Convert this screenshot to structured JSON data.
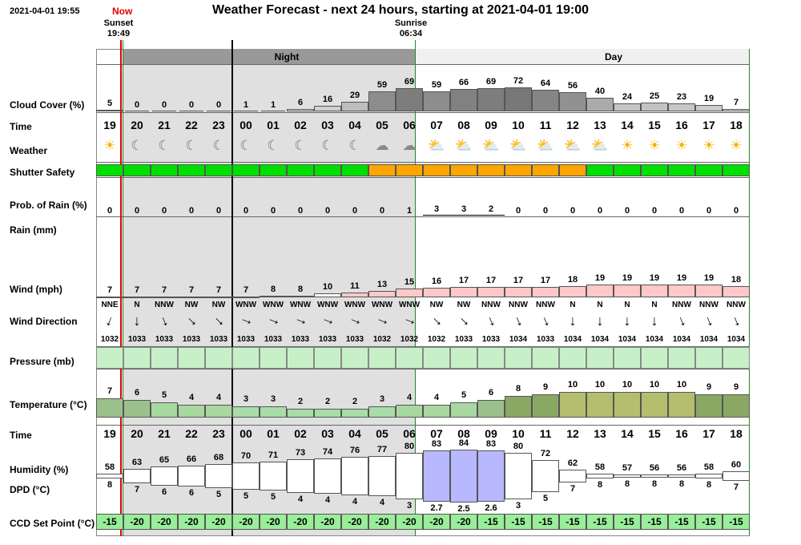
{
  "header": {
    "timestamp": "2021-04-01 19:55",
    "now_label": "Now",
    "title": "Weather Forecast - next 24 hours, starting at 2021-04-01 19:00",
    "sunset_label": "Sunset",
    "sunset_time": "19:49",
    "sunrise_label": "Sunrise",
    "sunrise_time": "06:34"
  },
  "period_labels": {
    "night": "Night",
    "day": "Day"
  },
  "rows": {
    "cloud_cover": "Cloud Cover (%)",
    "time": "Time",
    "weather": "Weather",
    "shutter_safety": "Shutter Safety",
    "prob_rain": "Prob. of Rain (%)",
    "rain": "Rain (mm)",
    "wind": "Wind (mph)",
    "wind_direction": "Wind Direction",
    "pressure": "Pressure (mb)",
    "temperature": "Temperature (°C)",
    "time2": "Time",
    "humidity": "Humidity (%)",
    "dpd": "DPD (°C)",
    "ccd": "CCD Set Point (°C)"
  },
  "chart_data": {
    "type": "table",
    "hours": [
      "19",
      "20",
      "21",
      "22",
      "23",
      "00",
      "01",
      "02",
      "03",
      "04",
      "05",
      "06",
      "07",
      "08",
      "09",
      "10",
      "11",
      "12",
      "13",
      "14",
      "15",
      "16",
      "17",
      "18"
    ],
    "cloud_cover": [
      5,
      0,
      0,
      0,
      0,
      1,
      1,
      6,
      16,
      29,
      59,
      69,
      59,
      66,
      69,
      72,
      64,
      56,
      40,
      24,
      25,
      23,
      19,
      7
    ],
    "weather_icons": [
      "sun-icon",
      "moon-icon",
      "moon-icon",
      "moon-icon",
      "moon-icon",
      "moon-icon",
      "moon-icon",
      "moon-icon",
      "moon-icon",
      "moon-icon",
      "cloud-moon-icon",
      "cloud-moon-icon",
      "cloud-sun-icon",
      "cloud-sun-icon",
      "cloud-sun-icon",
      "cloud-sun-icon",
      "cloud-sun-icon",
      "cloud-sun-icon",
      "cloud-sun-icon",
      "sun-icon",
      "sun-icon",
      "sun-icon",
      "sun-icon",
      "sun-icon"
    ],
    "shutter_safety": [
      "safe",
      "safe",
      "safe",
      "safe",
      "safe",
      "safe",
      "safe",
      "safe",
      "safe",
      "safe",
      "caution",
      "caution",
      "caution",
      "caution",
      "caution",
      "caution",
      "caution",
      "caution",
      "safe",
      "safe",
      "safe",
      "safe",
      "safe",
      "safe"
    ],
    "prob_rain": [
      0,
      0,
      0,
      0,
      0,
      0,
      0,
      0,
      0,
      0,
      0,
      1,
      3,
      3,
      2,
      0,
      0,
      0,
      0,
      0,
      0,
      0,
      0,
      0
    ],
    "wind_speed": [
      7,
      7,
      7,
      7,
      7,
      7,
      8,
      8,
      10,
      11,
      13,
      15,
      16,
      17,
      17,
      17,
      17,
      18,
      19,
      19,
      19,
      19,
      19,
      18
    ],
    "wind_direction": [
      "NNE",
      "N",
      "NNW",
      "NW",
      "NW",
      "WNW",
      "WNW",
      "WNW",
      "WNW",
      "WNW",
      "WNW",
      "WNW",
      "NW",
      "NW",
      "NNW",
      "NNW",
      "NNW",
      "N",
      "N",
      "N",
      "N",
      "NNW",
      "NNW",
      "NNW"
    ],
    "pressure": [
      1032,
      1033,
      1033,
      1033,
      1033,
      1033,
      1033,
      1033,
      1033,
      1033,
      1032,
      1032,
      1032,
      1033,
      1033,
      1034,
      1033,
      1034,
      1034,
      1034,
      1034,
      1034,
      1034,
      1034
    ],
    "temperature": [
      7,
      6,
      5,
      4,
      4,
      3,
      3,
      2,
      2,
      2,
      3,
      4,
      4,
      5,
      6,
      8,
      9,
      10,
      10,
      10,
      10,
      10,
      9,
      9
    ],
    "humidity": [
      58,
      63,
      65,
      66,
      68,
      70,
      71,
      73,
      74,
      76,
      77,
      80,
      83,
      84,
      83,
      80,
      72,
      62,
      58,
      57,
      56,
      56,
      58,
      60
    ],
    "dpd": [
      "8",
      "7",
      "6",
      "6",
      "5",
      "5",
      "5",
      "4",
      "4",
      "4",
      "4",
      "3",
      "2.7",
      "2.5",
      "2.6",
      "3",
      "5",
      "7",
      "8",
      "8",
      "8",
      "8",
      "8",
      "7"
    ],
    "ccd_set_point": [
      -15,
      -20,
      -20,
      -20,
      -20,
      -20,
      -20,
      -20,
      -20,
      -20,
      -20,
      -20,
      -20,
      -20,
      -15,
      -15,
      -15,
      -15,
      -15,
      -15,
      -15,
      -15,
      -15,
      -15
    ]
  },
  "colors": {
    "night_bg": "#e0e0e0",
    "night_header": "#999999",
    "day_header": "#f0f0f0",
    "now_line": "#e00000",
    "boundary_line": "#228822",
    "safe": "#00e000",
    "caution": "#ffa500",
    "wind_bar": "#ffc8c8",
    "pressure": "#c8f0c8",
    "humidity_high": "#b8b8ff",
    "ccd": "#99ee99"
  }
}
